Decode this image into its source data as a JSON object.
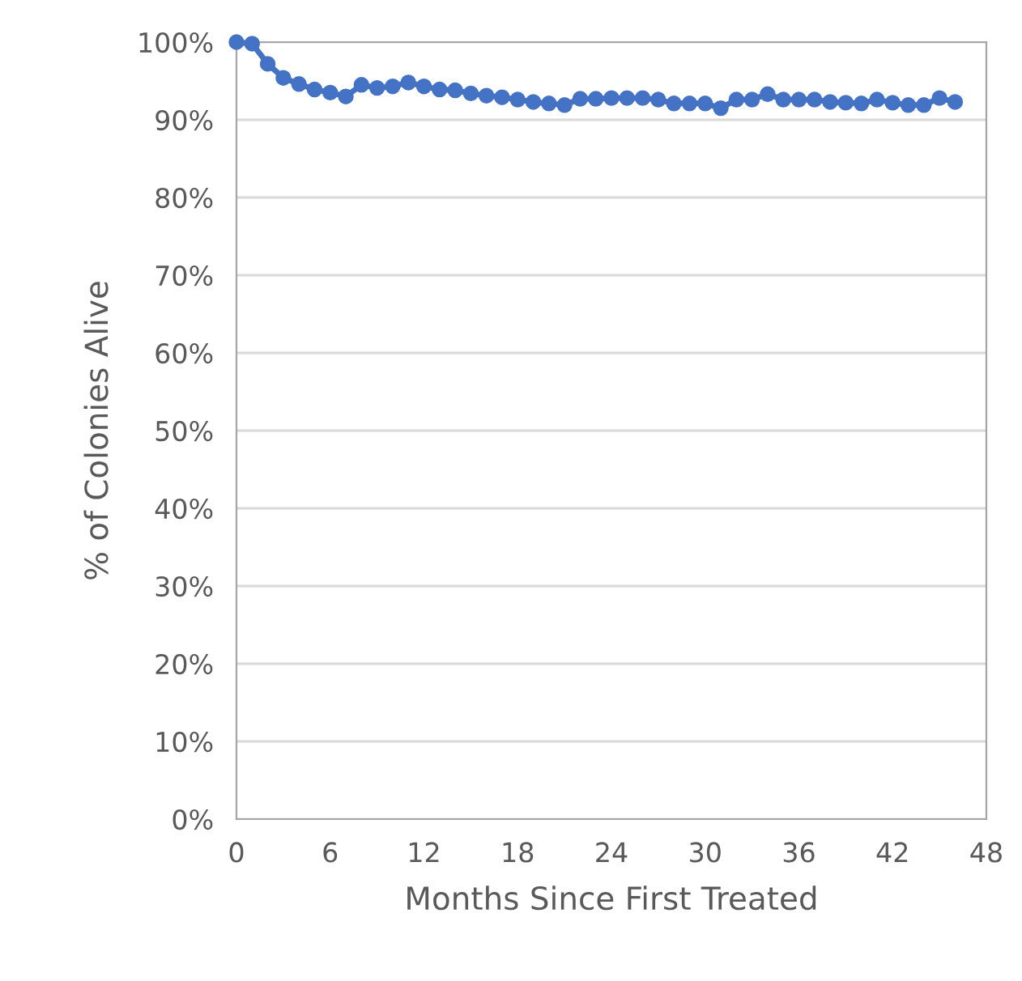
{
  "chart_data": {
    "type": "line",
    "xlabel": "Months Since First Treated",
    "ylabel": "% of Colonies Alive",
    "x": [
      0,
      1,
      2,
      3,
      4,
      5,
      6,
      7,
      8,
      9,
      10,
      11,
      12,
      13,
      14,
      15,
      16,
      17,
      18,
      19,
      20,
      21,
      22,
      23,
      24,
      25,
      26,
      27,
      28,
      29,
      30,
      31,
      32,
      33,
      34,
      35,
      36,
      37,
      38,
      39,
      40,
      41,
      42,
      43,
      44,
      45,
      46
    ],
    "series": [
      {
        "color": "#4472c4",
        "values": [
          100,
          99.8,
          97.2,
          95.4,
          94.6,
          93.9,
          93.5,
          93.0,
          94.5,
          94.1,
          94.3,
          94.8,
          94.3,
          93.9,
          93.8,
          93.4,
          93.1,
          92.9,
          92.6,
          92.3,
          92.1,
          91.9,
          92.7,
          92.7,
          92.8,
          92.8,
          92.8,
          92.6,
          92.1,
          92.1,
          92.1,
          91.5,
          92.6,
          92.6,
          93.3,
          92.6,
          92.6,
          92.6,
          92.3,
          92.2,
          92.1,
          92.6,
          92.2,
          91.9,
          91.9,
          92.8,
          92.3
        ]
      }
    ],
    "xlim": [
      0,
      48
    ],
    "xticks": [
      0,
      6,
      12,
      18,
      24,
      30,
      36,
      42,
      48
    ],
    "ylim": [
      0,
      100
    ],
    "yticks": [
      {
        "value": 0,
        "label": "0%"
      },
      {
        "value": 10,
        "label": "10%"
      },
      {
        "value": 20,
        "label": "20%"
      },
      {
        "value": 30,
        "label": "30%"
      },
      {
        "value": 40,
        "label": "40%"
      },
      {
        "value": 50,
        "label": "50%"
      },
      {
        "value": 60,
        "label": "60%"
      },
      {
        "value": 70,
        "label": "70%"
      },
      {
        "value": 80,
        "label": "80%"
      },
      {
        "value": 90,
        "label": "90%"
      },
      {
        "value": 100,
        "label": "100%"
      }
    ],
    "grid": "y",
    "marker": "circle",
    "line_style": "solid"
  }
}
